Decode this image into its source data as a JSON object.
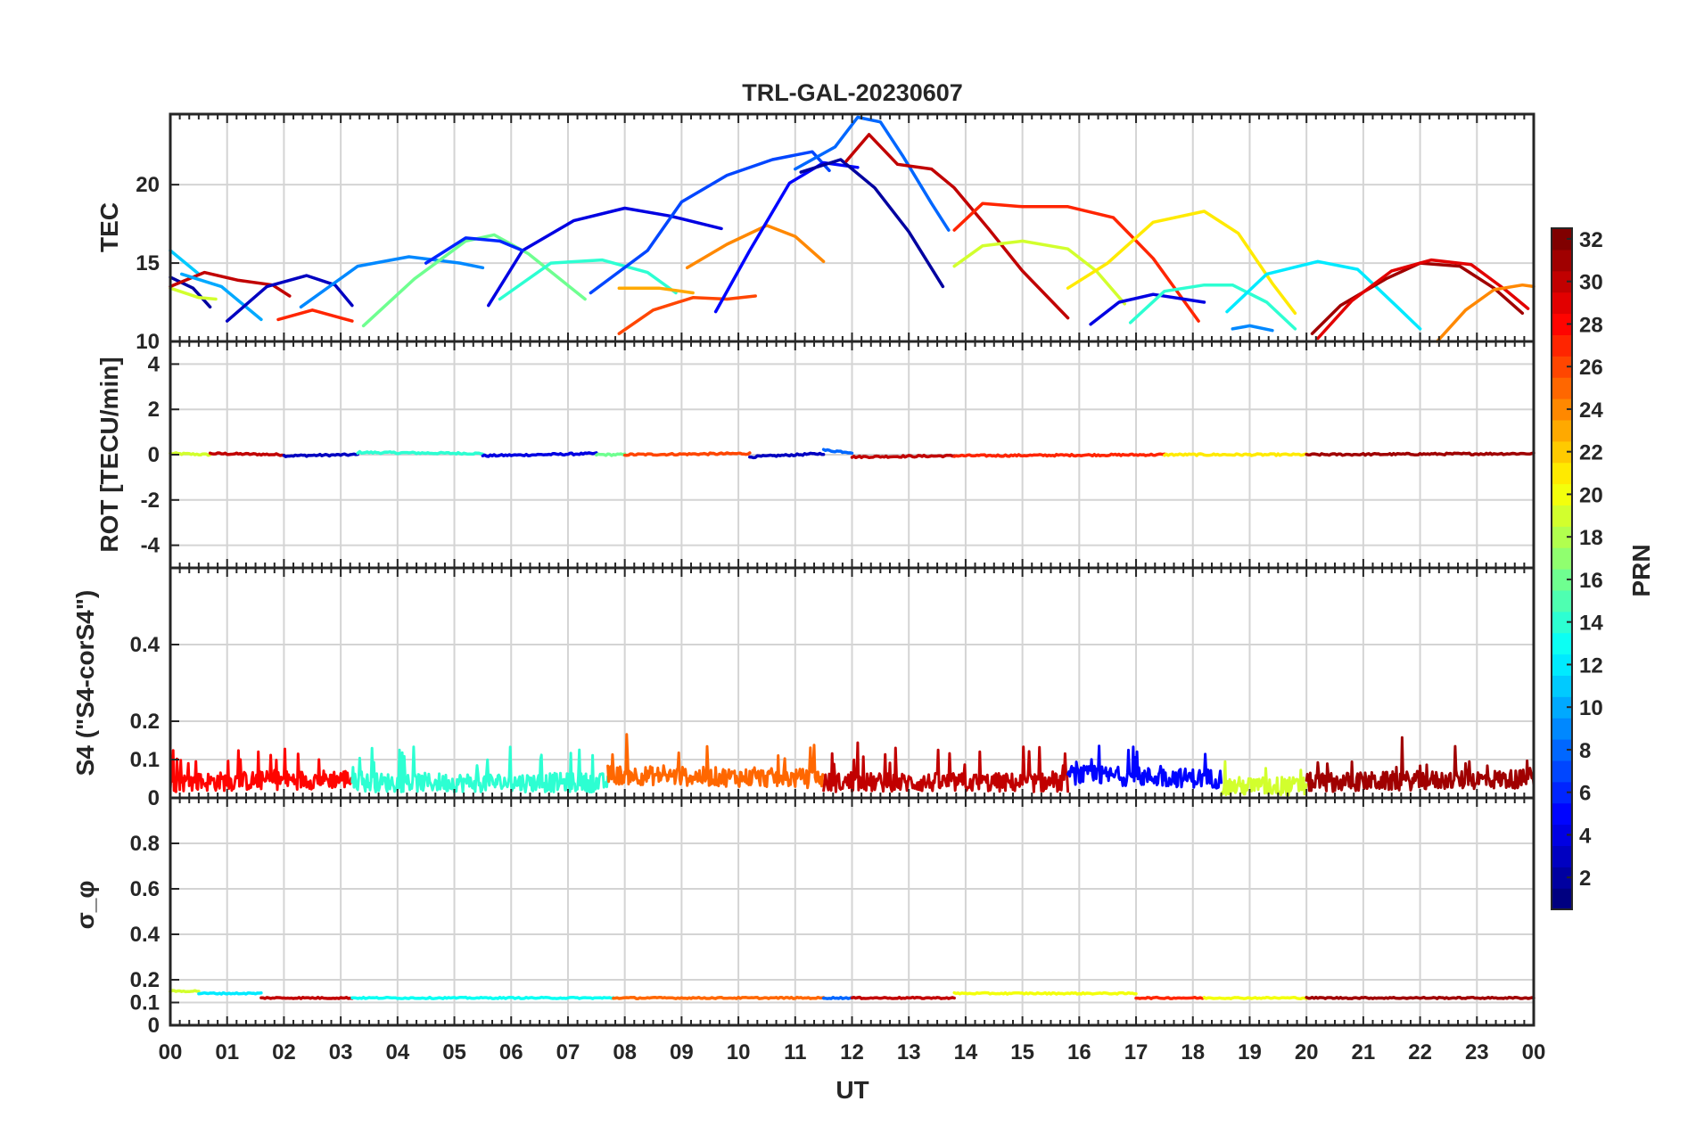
{
  "title": "TRL-GAL-20230607",
  "xlabel": "UT",
  "x_ticks": [
    "00",
    "01",
    "02",
    "03",
    "04",
    "05",
    "06",
    "07",
    "08",
    "09",
    "10",
    "11",
    "12",
    "13",
    "14",
    "15",
    "16",
    "17",
    "18",
    "19",
    "20",
    "21",
    "22",
    "23",
    "00"
  ],
  "colorbar": {
    "label": "PRN",
    "range": [
      1,
      32
    ],
    "colormap": "jet",
    "ticks": [
      "2",
      "4",
      "6",
      "8",
      "10",
      "12",
      "14",
      "16",
      "18",
      "20",
      "22",
      "24",
      "26",
      "28",
      "30",
      "32"
    ]
  },
  "chart_data": [
    {
      "type": "line",
      "panel": "TEC",
      "ylabel": "TEC",
      "ylim": [
        10,
        24.5
      ],
      "yticks": [
        "10",
        "15",
        "20"
      ],
      "x_unit": "hours UT",
      "series": [
        {
          "prn": 11,
          "x": [
            0.0,
            0.5
          ],
          "y": [
            15.8,
            14.3
          ]
        },
        {
          "prn": 2,
          "x": [
            0.0,
            0.4,
            0.7
          ],
          "y": [
            14.1,
            13.4,
            12.2
          ]
        },
        {
          "prn": 19,
          "x": [
            0.0,
            0.5,
            0.8
          ],
          "y": [
            13.4,
            12.8,
            12.7
          ]
        },
        {
          "prn": 30,
          "x": [
            0.0,
            0.6,
            1.2,
            1.8,
            2.1
          ],
          "y": [
            13.5,
            14.4,
            13.9,
            13.6,
            12.9
          ]
        },
        {
          "prn": 10,
          "x": [
            0.2,
            0.9,
            1.6
          ],
          "y": [
            14.3,
            13.5,
            11.4
          ]
        },
        {
          "prn": 3,
          "x": [
            1.0,
            1.7,
            2.4,
            2.9,
            3.2
          ],
          "y": [
            11.3,
            13.5,
            14.2,
            13.6,
            12.3
          ]
        },
        {
          "prn": 27,
          "x": [
            1.9,
            2.5,
            3.2
          ],
          "y": [
            11.4,
            12.0,
            11.3
          ]
        },
        {
          "prn": 9,
          "x": [
            2.3,
            3.3,
            4.2,
            5.1,
            5.5
          ],
          "y": [
            12.2,
            14.8,
            15.4,
            15.0,
            14.7
          ]
        },
        {
          "prn": 16,
          "x": [
            3.4,
            4.3,
            5.2,
            5.7,
            6.3,
            7.3
          ],
          "y": [
            11.0,
            14.0,
            16.4,
            16.8,
            15.6,
            12.7
          ]
        },
        {
          "prn": 4,
          "x": [
            5.6,
            6.2,
            7.1,
            8.0,
            8.8,
            9.7
          ],
          "y": [
            12.3,
            15.8,
            17.7,
            18.5,
            18.0,
            17.2
          ]
        },
        {
          "prn": 6,
          "x": [
            4.5,
            5.2,
            5.8,
            6.2
          ],
          "y": [
            15.0,
            16.6,
            16.4,
            15.8
          ]
        },
        {
          "prn": 14,
          "x": [
            5.8,
            6.7,
            7.6,
            8.4,
            8.9
          ],
          "y": [
            12.7,
            15.0,
            15.2,
            14.4,
            13.1
          ]
        },
        {
          "prn": 7,
          "x": [
            7.4,
            8.4,
            9.0,
            9.8,
            10.6,
            11.3,
            11.6
          ],
          "y": [
            13.1,
            15.8,
            18.9,
            20.6,
            21.6,
            22.1,
            20.9
          ]
        },
        {
          "prn": 24,
          "x": [
            9.1,
            9.8,
            10.5,
            11.0,
            11.5
          ],
          "y": [
            14.7,
            16.2,
            17.4,
            16.7,
            15.1
          ]
        },
        {
          "prn": 26,
          "x": [
            7.9,
            8.5,
            9.2,
            9.8,
            10.3
          ],
          "y": [
            10.5,
            12.0,
            12.8,
            12.7,
            12.9
          ]
        },
        {
          "prn": 23,
          "x": [
            7.9,
            8.6,
            9.2
          ],
          "y": [
            13.4,
            13.4,
            13.1
          ]
        },
        {
          "prn": 5,
          "x": [
            9.6,
            10.2,
            10.9,
            11.5,
            12.1
          ],
          "y": [
            11.9,
            15.8,
            20.1,
            21.4,
            21.1
          ]
        },
        {
          "prn": 2,
          "x": [
            11.1,
            11.8,
            12.4,
            13.0,
            13.6
          ],
          "y": [
            20.8,
            21.6,
            19.8,
            17.0,
            13.5
          ]
        },
        {
          "prn": 8,
          "x": [
            11.0,
            11.7,
            12.1,
            12.5,
            12.9,
            13.4,
            13.7
          ],
          "y": [
            21.0,
            22.4,
            24.3,
            24.0,
            21.8,
            18.8,
            17.1
          ]
        },
        {
          "prn": 30,
          "x": [
            11.9,
            12.3,
            12.8,
            13.4,
            13.8,
            14.4,
            15.0,
            15.8
          ],
          "y": [
            21.5,
            23.2,
            21.3,
            21.0,
            19.8,
            17.2,
            14.5,
            11.5
          ]
        },
        {
          "prn": 27,
          "x": [
            13.8,
            14.3,
            15.0,
            15.8,
            16.6,
            17.3,
            18.1
          ],
          "y": [
            17.1,
            18.8,
            18.6,
            18.6,
            17.9,
            15.3,
            11.3
          ]
        },
        {
          "prn": 19,
          "x": [
            13.8,
            14.3,
            15.0,
            15.8,
            16.3,
            16.8
          ],
          "y": [
            14.8,
            16.1,
            16.4,
            15.9,
            14.5,
            12.4
          ]
        },
        {
          "prn": 21,
          "x": [
            15.8,
            16.5,
            17.3,
            18.2,
            18.8,
            19.4,
            19.8
          ],
          "y": [
            13.4,
            15.0,
            17.6,
            18.3,
            16.9,
            13.7,
            11.8
          ]
        },
        {
          "prn": 4,
          "x": [
            16.2,
            16.7,
            17.3,
            18.2
          ],
          "y": [
            11.1,
            12.5,
            13.0,
            12.5
          ]
        },
        {
          "prn": 14,
          "x": [
            16.9,
            17.5,
            18.2,
            18.7,
            19.3,
            19.8
          ],
          "y": [
            11.2,
            13.2,
            13.6,
            13.6,
            12.5,
            10.8
          ]
        },
        {
          "prn": 12,
          "x": [
            18.6,
            19.3,
            20.2,
            20.9,
            21.6,
            22.0
          ],
          "y": [
            11.9,
            14.3,
            15.1,
            14.6,
            12.2,
            10.8
          ]
        },
        {
          "prn": 9,
          "x": [
            18.7,
            19.0,
            19.4
          ],
          "y": [
            10.8,
            11.0,
            10.7
          ]
        },
        {
          "prn": 31,
          "x": [
            20.1,
            20.6,
            21.4,
            22.0,
            22.7,
            23.3,
            23.8
          ],
          "y": [
            10.5,
            12.3,
            14.0,
            15.0,
            14.8,
            13.4,
            11.8
          ]
        },
        {
          "prn": 29,
          "x": [
            20.2,
            20.8,
            21.5,
            22.2,
            22.9,
            23.5,
            23.9
          ],
          "y": [
            10.2,
            12.6,
            14.5,
            15.2,
            14.9,
            13.3,
            12.1
          ]
        },
        {
          "prn": 24,
          "x": [
            22.3,
            22.8,
            23.3,
            23.8,
            24.0
          ],
          "y": [
            10.0,
            12.0,
            13.3,
            13.6,
            13.5
          ]
        }
      ]
    },
    {
      "type": "line",
      "panel": "ROT",
      "ylabel": "ROT [TECU/min]",
      "ylim": [
        -5,
        5
      ],
      "yticks": [
        "-4",
        "-2",
        "0",
        "2",
        "4"
      ],
      "series": [
        {
          "prn": 19,
          "x": [
            0.0,
            0.7
          ],
          "y": [
            0.05,
            0.0
          ]
        },
        {
          "prn": 30,
          "x": [
            0.7,
            2.0
          ],
          "y": [
            0.05,
            0.0
          ]
        },
        {
          "prn": 3,
          "x": [
            2.0,
            3.3
          ],
          "y": [
            -0.05,
            0.0
          ]
        },
        {
          "prn": 14,
          "x": [
            3.3,
            5.5
          ],
          "y": [
            0.1,
            0.05
          ]
        },
        {
          "prn": 4,
          "x": [
            5.5,
            7.5
          ],
          "y": [
            -0.05,
            0.05
          ]
        },
        {
          "prn": 16,
          "x": [
            7.5,
            8.0
          ],
          "y": [
            0.0,
            0.0
          ]
        },
        {
          "prn": 26,
          "x": [
            8.0,
            10.2
          ],
          "y": [
            0.0,
            0.05
          ]
        },
        {
          "prn": 3,
          "x": [
            10.2,
            11.5
          ],
          "y": [
            -0.1,
            0.05
          ]
        },
        {
          "prn": 8,
          "x": [
            11.5,
            12.0
          ],
          "y": [
            0.2,
            0.1
          ]
        },
        {
          "prn": 30,
          "x": [
            12.0,
            13.8
          ],
          "y": [
            -0.1,
            -0.05
          ]
        },
        {
          "prn": 27,
          "x": [
            13.8,
            17.5
          ],
          "y": [
            -0.05,
            0.0
          ]
        },
        {
          "prn": 21,
          "x": [
            17.5,
            20.0
          ],
          "y": [
            0.0,
            0.0
          ]
        },
        {
          "prn": 31,
          "x": [
            20.0,
            24.0
          ],
          "y": [
            0.0,
            0.05
          ]
        }
      ]
    },
    {
      "type": "line",
      "panel": "S4",
      "ylabel": "S4 (\"S4-corS4\")",
      "ylim": [
        0,
        0.6
      ],
      "yticks": [
        "0",
        "0.1",
        "0.2",
        "0.4"
      ],
      "series": [
        {
          "prn": 28,
          "x": [
            0.0,
            3.2
          ],
          "y": [
            0.04,
            0.05
          ]
        },
        {
          "prn": 14,
          "x": [
            3.2,
            7.7
          ],
          "y": [
            0.04,
            0.04
          ]
        },
        {
          "prn": 25,
          "x": [
            7.7,
            11.5
          ],
          "y": [
            0.06,
            0.05
          ]
        },
        {
          "prn": 30,
          "x": [
            11.5,
            15.8
          ],
          "y": [
            0.04,
            0.04
          ]
        },
        {
          "prn": 5,
          "x": [
            15.8,
            18.5
          ],
          "y": [
            0.06,
            0.05
          ]
        },
        {
          "prn": 19,
          "x": [
            18.5,
            20.0
          ],
          "y": [
            0.03,
            0.03
          ]
        },
        {
          "prn": 31,
          "x": [
            20.0,
            24.0
          ],
          "y": [
            0.04,
            0.05
          ]
        }
      ]
    },
    {
      "type": "line",
      "panel": "sigma_phi",
      "ylabel": "σ_φ",
      "ylim": [
        0,
        1
      ],
      "yticks": [
        "0",
        "0.1",
        "0.2",
        "0.4",
        "0.6",
        "0.8"
      ],
      "series": [
        {
          "prn": 19,
          "x": [
            0.0,
            0.5
          ],
          "y": [
            0.15,
            0.15
          ]
        },
        {
          "prn": 12,
          "x": [
            0.5,
            1.6
          ],
          "y": [
            0.14,
            0.14
          ]
        },
        {
          "prn": 30,
          "x": [
            1.6,
            3.2
          ],
          "y": [
            0.12,
            0.12
          ]
        },
        {
          "prn": 13,
          "x": [
            3.2,
            7.8
          ],
          "y": [
            0.12,
            0.12
          ]
        },
        {
          "prn": 25,
          "x": [
            7.8,
            11.5
          ],
          "y": [
            0.12,
            0.12
          ]
        },
        {
          "prn": 8,
          "x": [
            11.5,
            12.0
          ],
          "y": [
            0.12,
            0.12
          ]
        },
        {
          "prn": 30,
          "x": [
            12.0,
            13.8
          ],
          "y": [
            0.12,
            0.12
          ]
        },
        {
          "prn": 20,
          "x": [
            13.8,
            17.0
          ],
          "y": [
            0.14,
            0.14
          ]
        },
        {
          "prn": 27,
          "x": [
            17.0,
            18.2
          ],
          "y": [
            0.12,
            0.12
          ]
        },
        {
          "prn": 20,
          "x": [
            18.2,
            20.0
          ],
          "y": [
            0.12,
            0.12
          ]
        },
        {
          "prn": 31,
          "x": [
            20.0,
            24.0
          ],
          "y": [
            0.12,
            0.12
          ]
        }
      ]
    }
  ]
}
